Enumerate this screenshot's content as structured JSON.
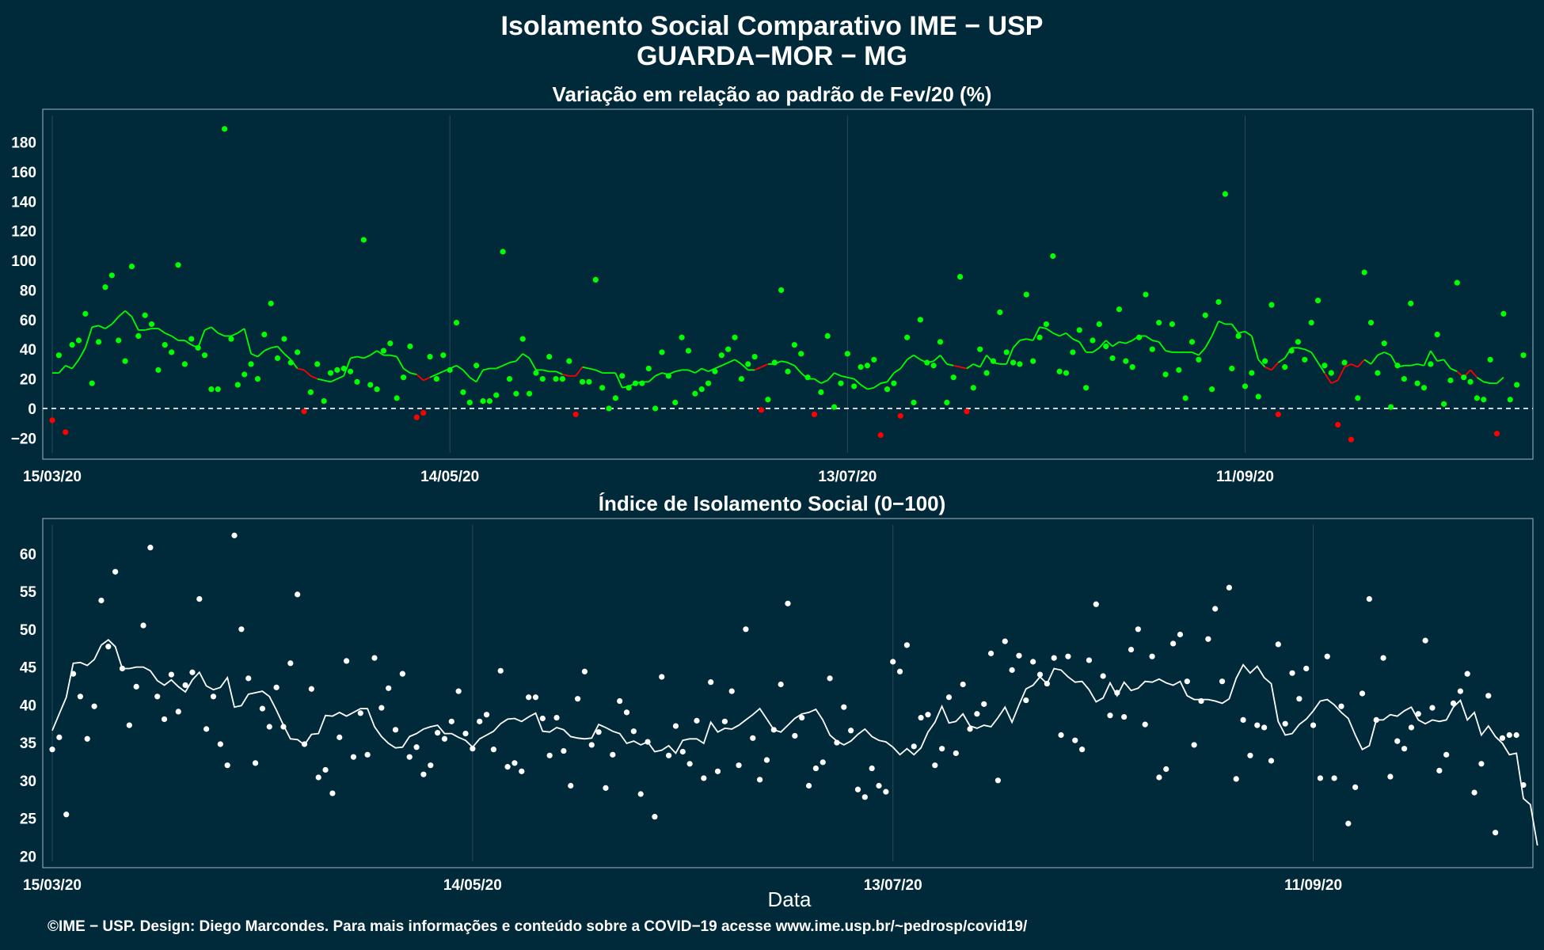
{
  "title_line1": "Isolamento Social Comparativo IME − USP",
  "title_line2": "GUARDA−MOR − MG",
  "xlabel": "Data",
  "footer": "©IME − USP. Design: Diego Marcondes. Para mais informações e conteúdo sobre a COVID−19 acesse www.ime.usp.br/~pedrosp/covid19/",
  "colors": {
    "background": "#00293a",
    "positive": "#00ff00",
    "negative": "#ff0000",
    "index": "#ffffff",
    "gridline": "#2a4a58",
    "zero_line": "#ffffff"
  },
  "chart_data": [
    {
      "type": "scatter",
      "title": "Variação em relação ao padrão de Fev/20 (%)",
      "x_start": "2020-03-15",
      "x_end": "2020-10-30",
      "x_tick_labels": [
        "15/03/20",
        "14/05/20",
        "13/07/20",
        "11/09/20"
      ],
      "y_tick_labels": [
        "−20",
        "0",
        "20",
        "40",
        "60",
        "80",
        "100",
        "120",
        "140",
        "160",
        "180"
      ],
      "ylim": [
        -30,
        198
      ],
      "zero_line": true,
      "series": [
        {
          "role": "daily",
          "values": [
            -8,
            36,
            -16,
            43,
            46,
            64,
            17,
            45,
            82,
            90,
            46,
            32,
            96,
            49,
            63,
            57,
            26,
            43,
            38,
            97,
            30,
            47,
            41,
            36,
            13,
            13,
            189,
            47,
            16,
            23,
            30,
            20,
            50,
            71,
            34,
            47,
            31,
            38,
            -2,
            11,
            30,
            5,
            24,
            26,
            27,
            25,
            18,
            114,
            16,
            13,
            39,
            44,
            7,
            21,
            42,
            -6,
            -3,
            35,
            20,
            36,
            26,
            58,
            11,
            4,
            29,
            5,
            5,
            9,
            106,
            20,
            10,
            47,
            10,
            24,
            20,
            35,
            20,
            20,
            32,
            -4,
            18,
            18,
            87,
            14,
            0,
            7,
            22,
            14,
            17,
            17,
            27,
            0,
            38,
            22,
            4,
            48,
            39,
            10,
            13,
            17,
            25,
            36,
            40,
            48,
            20,
            30,
            35,
            -1,
            6,
            31,
            80,
            25,
            43,
            37,
            21,
            -4,
            11,
            49,
            1,
            17,
            37,
            15,
            28,
            29,
            33,
            -18,
            13,
            17,
            -5,
            48,
            4,
            60,
            31,
            29,
            45,
            4,
            21,
            89,
            -2,
            14,
            40,
            24,
            32,
            65,
            38,
            31,
            30,
            77,
            32,
            48,
            57,
            103,
            25,
            24,
            38,
            53,
            14,
            46,
            57,
            42,
            34,
            67,
            32,
            28,
            48,
            77,
            40,
            58,
            23,
            57,
            26,
            7,
            45,
            33,
            63,
            13,
            72,
            145,
            27,
            49,
            15,
            24,
            8,
            32,
            70,
            -4,
            28,
            39,
            45,
            33,
            58,
            73,
            29,
            24,
            -11,
            31,
            -21,
            7,
            92,
            58,
            24,
            44,
            1,
            29,
            20,
            71,
            17,
            14,
            30,
            50,
            3,
            19,
            85,
            21,
            18,
            7,
            6,
            33,
            -17,
            64,
            6,
            16,
            36
          ]
        },
        {
          "role": "moving_average",
          "values": [
            24,
            24,
            29,
            27,
            33,
            41,
            55,
            56,
            54,
            57,
            62,
            66,
            62,
            53,
            53,
            54,
            54,
            51,
            49,
            46,
            46,
            43,
            41,
            53,
            55,
            51,
            49,
            49,
            51,
            54,
            37,
            35,
            39,
            41,
            42,
            37,
            33,
            27,
            26,
            22,
            20,
            19,
            18,
            20,
            22,
            34,
            35,
            34,
            36,
            39,
            36,
            36,
            35,
            27,
            24,
            23,
            19,
            21,
            23,
            25,
            27,
            29,
            26,
            21,
            18,
            26,
            27,
            27,
            29,
            31,
            32,
            37,
            34,
            26,
            26,
            25,
            25,
            23,
            22,
            22,
            28,
            27,
            26,
            24,
            24,
            24,
            14,
            15,
            17,
            18,
            18,
            22,
            24,
            23,
            25,
            26,
            26,
            24,
            27,
            25,
            27,
            29,
            31,
            33,
            30,
            26,
            26,
            28,
            30,
            30,
            32,
            31,
            29,
            24,
            20,
            20,
            17,
            19,
            24,
            22,
            21,
            20,
            16,
            13,
            14,
            17,
            18,
            24,
            27,
            33,
            36,
            33,
            31,
            32,
            36,
            30,
            29,
            28,
            27,
            30,
            28,
            36,
            31,
            30,
            30,
            41,
            46,
            47,
            46,
            55,
            54,
            51,
            49,
            51,
            47,
            45,
            38,
            38,
            41,
            46,
            42,
            45,
            44,
            46,
            49,
            49,
            46,
            45,
            39,
            38,
            38,
            38,
            38,
            36,
            41,
            49,
            59,
            57,
            57,
            51,
            52,
            49,
            33,
            28,
            26,
            31,
            34,
            41,
            41,
            40,
            38,
            31,
            24,
            17,
            19,
            28,
            30,
            28,
            33,
            30,
            36,
            38,
            36,
            28,
            29,
            29,
            30,
            29,
            39,
            32,
            33,
            27,
            25,
            21,
            26,
            21,
            18,
            17,
            17,
            21
          ]
        }
      ]
    },
    {
      "type": "scatter",
      "title": "Índice de Isolamento Social (0−100)",
      "x_start": "2020-03-15",
      "x_end": "2020-10-30",
      "x_tick_labels": [
        "15/03/20",
        "14/05/20",
        "13/07/20",
        "11/09/20"
      ],
      "y_tick_labels": [
        "20",
        "25",
        "30",
        "35",
        "40",
        "45",
        "50",
        "55",
        "60"
      ],
      "ylim": [
        19.3,
        63.8
      ],
      "series": [
        {
          "role": "daily",
          "values": [
            34.1,
            35.7,
            25.5,
            44.1,
            41.1,
            35.5,
            39.8,
            53.8,
            47.7,
            57.6,
            44.8,
            37.3,
            42.4,
            50.5,
            60.8,
            41.1,
            38.1,
            44.0,
            39.1,
            42.6,
            44.3,
            54.0,
            36.8,
            41.1,
            34.8,
            32.0,
            62.4,
            50.0,
            43.5,
            32.3,
            39.5,
            37.1,
            42.3,
            37.1,
            45.5,
            54.6,
            34.8,
            42.1,
            30.4,
            31.4,
            28.3,
            35.7,
            45.8,
            33.1,
            38.9,
            33.4,
            46.2,
            39.6,
            42.2,
            36.7,
            44.1,
            33.1,
            34.4,
            30.8,
            32.0,
            36.3,
            35.5,
            37.8,
            41.8,
            36.2,
            34.2,
            37.8,
            38.7,
            34.1,
            44.5,
            31.8,
            32.3,
            31.2,
            41.0,
            41.0,
            38.2,
            33.3,
            38.3,
            33.9,
            29.3,
            40.8,
            44.4,
            34.7,
            36.4,
            29.0,
            33.4,
            40.5,
            39.0,
            36.5,
            28.2,
            35.1,
            25.2,
            43.7,
            33.3,
            37.2,
            33.8,
            32.2,
            37.9,
            30.3,
            43.0,
            31.2,
            37.8,
            41.8,
            32.0,
            50.0,
            35.6,
            30.1,
            32.7,
            36.7,
            42.7,
            53.4,
            35.9,
            38.3,
            29.3,
            31.6,
            32.4,
            43.5,
            35.0,
            39.7,
            36.6,
            28.8,
            27.8,
            31.6,
            29.3,
            28.5,
            45.7,
            44.4,
            47.9,
            34.5,
            38.3,
            38.7,
            32.0,
            34.2,
            41.0,
            33.6,
            42.7,
            36.8,
            38.8,
            40.1,
            46.8,
            30.0,
            48.4,
            44.6,
            46.5,
            40.6,
            45.7,
            44.0,
            42.8,
            46.2,
            36.0,
            46.4,
            35.3,
            34.1,
            45.9,
            53.3,
            43.8,
            38.6,
            41.6,
            38.4,
            47.3,
            50.0,
            37.4,
            46.4,
            30.4,
            31.5,
            48.1,
            49.3,
            43.1,
            34.7,
            40.5,
            48.7,
            52.7,
            43.1,
            55.5,
            30.2,
            38.0,
            33.3,
            37.3,
            37.0,
            32.6,
            48.0,
            37.5,
            44.2,
            40.8,
            44.8,
            37.3,
            30.3,
            46.4,
            30.3,
            39.8,
            24.3,
            29.1,
            41.5,
            54.0,
            38.0,
            46.2,
            30.5,
            35.2,
            34.2,
            37.0,
            38.8,
            48.5,
            39.6,
            31.3,
            33.4,
            40.2,
            41.8,
            44.1,
            28.4,
            32.2,
            41.2,
            23.1,
            35.6,
            36.0,
            36.0,
            29.4
          ]
        },
        {
          "role": "moving_average",
          "values": [
            36.6,
            38.8,
            41.0,
            45.5,
            45.6,
            45.2,
            46.0,
            47.9,
            48.6,
            47.7,
            44.8,
            44.8,
            45.0,
            45.0,
            44.5,
            43.2,
            42.6,
            43.3,
            42.4,
            41.7,
            43.3,
            44.3,
            42.5,
            42.0,
            42.3,
            43.6,
            39.7,
            39.9,
            41.4,
            41.6,
            41.8,
            41.1,
            39.3,
            37.3,
            35.5,
            35.4,
            34.7,
            36.1,
            36.2,
            38.6,
            38.5,
            39.0,
            38.5,
            39.0,
            39.5,
            39.5,
            37.1,
            35.8,
            34.9,
            34.3,
            34.4,
            35.8,
            36.2,
            36.8,
            37.1,
            37.3,
            36.2,
            36.2,
            35.7,
            35.3,
            34.4,
            35.5,
            36.0,
            36.5,
            37.5,
            38.1,
            38.2,
            37.8,
            38.4,
            38.9,
            36.5,
            36.4,
            37.0,
            36.7,
            35.8,
            35.6,
            35.5,
            35.6,
            37.4,
            37.0,
            36.5,
            36.2,
            34.9,
            35.2,
            34.7,
            35.1,
            33.8,
            34.0,
            34.6,
            33.6,
            35.3,
            35.5,
            35.5,
            34.9,
            37.7,
            36.4,
            36.9,
            36.8,
            37.3,
            38.0,
            38.7,
            39.5,
            38.1,
            36.7,
            36.4,
            37.3,
            38.2,
            38.8,
            39.0,
            39.4,
            38.0,
            36.0,
            35.2,
            34.7,
            35.2,
            36.1,
            36.8,
            35.8,
            35.3,
            35.1,
            34.4,
            33.4,
            34.2,
            33.4,
            34.3,
            36.4,
            37.7,
            39.8,
            37.6,
            37.8,
            38.8,
            37.2,
            36.9,
            37.3,
            37.1,
            38.3,
            39.7,
            37.7,
            40.0,
            42.1,
            42.6,
            43.7,
            42.8,
            44.8,
            44.6,
            43.7,
            43.0,
            43.1,
            42.0,
            40.4,
            40.9,
            42.9,
            41.2,
            43.0,
            41.9,
            42.2,
            43.1,
            43.0,
            43.4,
            42.9,
            42.6,
            43.1,
            41.2,
            40.7,
            40.7,
            40.7,
            40.5,
            40.2,
            40.8,
            43.5,
            45.3,
            44.2,
            45.1,
            43.6,
            42.8,
            37.8,
            36.0,
            36.2,
            37.4,
            38.1,
            39.2,
            40.5,
            40.7,
            40.0,
            39.0,
            38.2,
            36.0,
            34.1,
            34.6,
            38.0,
            38.0,
            38.7,
            38.5,
            39.2,
            39.7,
            38.0,
            37.5,
            38.0,
            37.8,
            38.0,
            39.7,
            40.6,
            38.0,
            39.0,
            36.0,
            37.2,
            35.8,
            34.9,
            33.4,
            33.6,
            27.6,
            26.8,
            21.4
          ]
        }
      ]
    }
  ]
}
